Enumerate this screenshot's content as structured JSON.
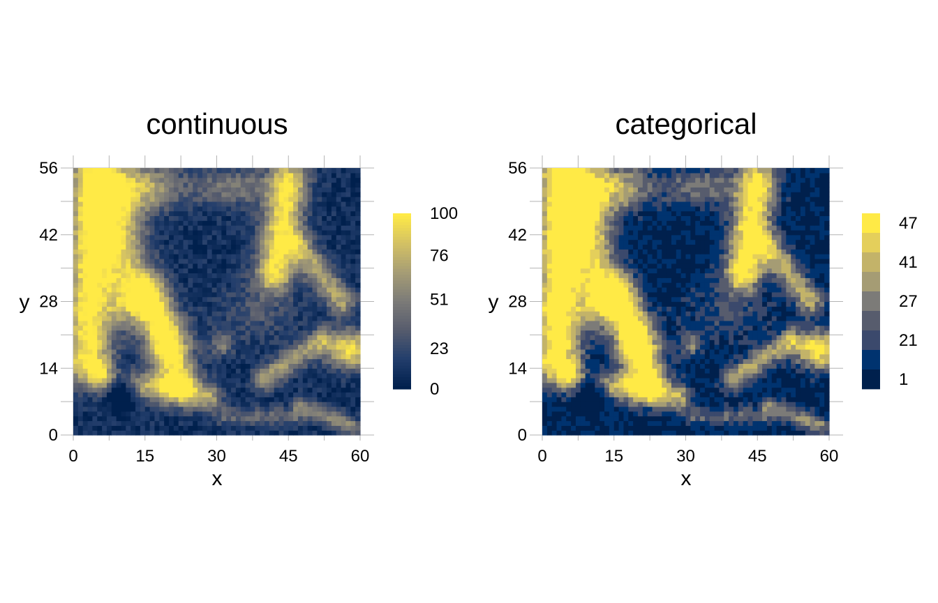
{
  "chart_data": [
    {
      "type": "heatmap",
      "title": "continuous",
      "xlabel": "x",
      "ylabel": "y",
      "xlim": [
        0,
        60
      ],
      "ylim": [
        0,
        56
      ],
      "x_ticks": [
        0,
        15,
        30,
        45,
        60
      ],
      "y_ticks": [
        0,
        14,
        28,
        42,
        56
      ],
      "legend": {
        "kind": "continuous",
        "position": "right",
        "labels": [
          "100",
          "76",
          "51",
          "23",
          "0"
        ],
        "values": [
          100,
          76,
          51,
          23,
          0
        ]
      },
      "colormap": [
        "#00204d",
        "#233e6c",
        "#575c6d",
        "#7c7b78",
        "#a69d75",
        "#d3c164",
        "#ffea46"
      ],
      "grid": "60x56 cells, values 0-100"
    },
    {
      "type": "heatmap",
      "title": "categorical",
      "xlabel": "x",
      "ylabel": "y",
      "xlim": [
        0,
        60
      ],
      "ylim": [
        0,
        56
      ],
      "x_ticks": [
        0,
        15,
        30,
        45,
        60
      ],
      "y_ticks": [
        0,
        14,
        28,
        42,
        56
      ],
      "legend": {
        "kind": "categorical",
        "position": "right",
        "labels": [
          "47",
          "41",
          "27",
          "21",
          "1"
        ],
        "colors": [
          "#ffea46",
          "#e4cf5b",
          "#c3b369",
          "#a59c74",
          "#7c7b78",
          "#575c6d",
          "#3b496c",
          "#00336f",
          "#00204d"
        ]
      }
    }
  ]
}
